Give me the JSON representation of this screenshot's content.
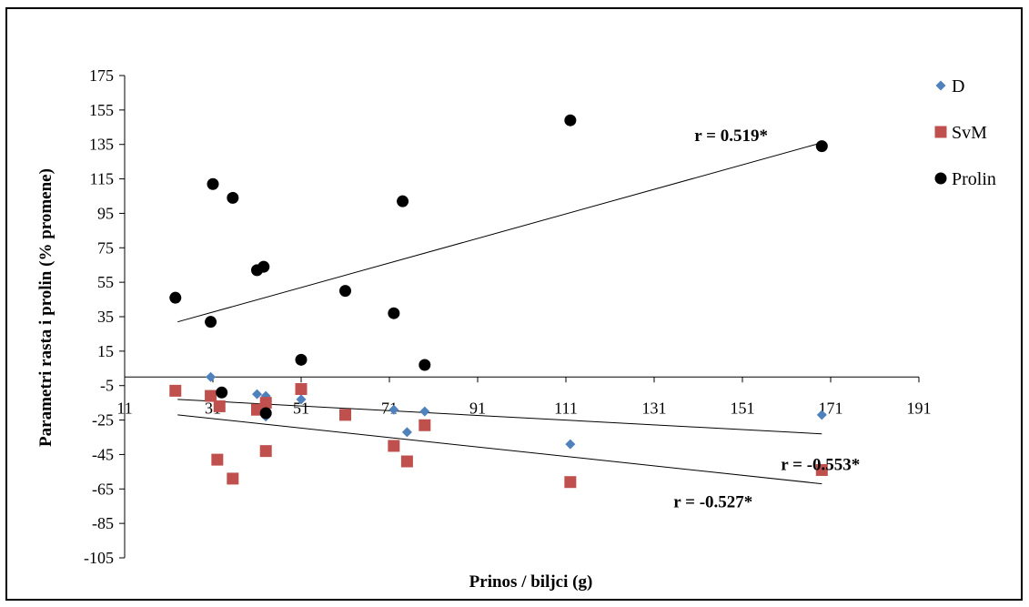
{
  "chart_data": {
    "type": "scatter",
    "title": "",
    "xlabel": "Prinos / biljci (g)",
    "ylabel": "Parametri rasta i prolin (% promene)",
    "xlim": [
      11,
      191
    ],
    "ylim": [
      -105,
      175
    ],
    "x_ticks": [
      11,
      31,
      51,
      71,
      91,
      111,
      131,
      151,
      171,
      191
    ],
    "y_ticks": [
      175,
      155,
      135,
      115,
      95,
      75,
      55,
      35,
      15,
      -5,
      -25,
      -45,
      -65,
      -85,
      -105
    ],
    "x_axis_crosses_at": 0,
    "grid": false,
    "legend_position": "right",
    "series": [
      {
        "name": "D",
        "marker": "diamond",
        "color": "#4f81bd",
        "points": [
          [
            30.5,
            0
          ],
          [
            41,
            -10
          ],
          [
            43,
            -11
          ],
          [
            43,
            -23
          ],
          [
            51,
            -13
          ],
          [
            72,
            -19
          ],
          [
            75,
            -32
          ],
          [
            79,
            -20
          ],
          [
            112,
            -39
          ],
          [
            169,
            -22
          ]
        ],
        "trend": {
          "x": [
            23,
            169
          ],
          "y": [
            -13,
            -33
          ],
          "label": "r = -0.553*"
        }
      },
      {
        "name": "SvM",
        "marker": "square",
        "color": "#c0504d",
        "points": [
          [
            22.5,
            -8
          ],
          [
            30.5,
            -11
          ],
          [
            32.5,
            -17
          ],
          [
            32,
            -48
          ],
          [
            35.5,
            -59
          ],
          [
            41,
            -19
          ],
          [
            43,
            -15
          ],
          [
            43,
            -43
          ],
          [
            51,
            -7
          ],
          [
            61,
            -22
          ],
          [
            72,
            -40
          ],
          [
            75,
            -49
          ],
          [
            79,
            -28
          ],
          [
            112,
            -61
          ],
          [
            169,
            -54
          ]
        ],
        "trend": {
          "x": [
            23,
            169
          ],
          "y": [
            -22,
            -62
          ],
          "label": "r = -0.527*"
        }
      },
      {
        "name": "Prolin",
        "marker": "circle",
        "color": "#000000",
        "points": [
          [
            22.5,
            46
          ],
          [
            30.5,
            32
          ],
          [
            31,
            112
          ],
          [
            33,
            -9
          ],
          [
            35.5,
            104
          ],
          [
            41,
            62
          ],
          [
            42.5,
            64
          ],
          [
            43,
            -21
          ],
          [
            51,
            10
          ],
          [
            61,
            50
          ],
          [
            72,
            37
          ],
          [
            74,
            102
          ],
          [
            79,
            7
          ],
          [
            112,
            149
          ],
          [
            169,
            134
          ]
        ],
        "trend": {
          "x": [
            23,
            169
          ],
          "y": [
            32,
            136
          ],
          "label": "r = 0.519*"
        }
      }
    ]
  }
}
